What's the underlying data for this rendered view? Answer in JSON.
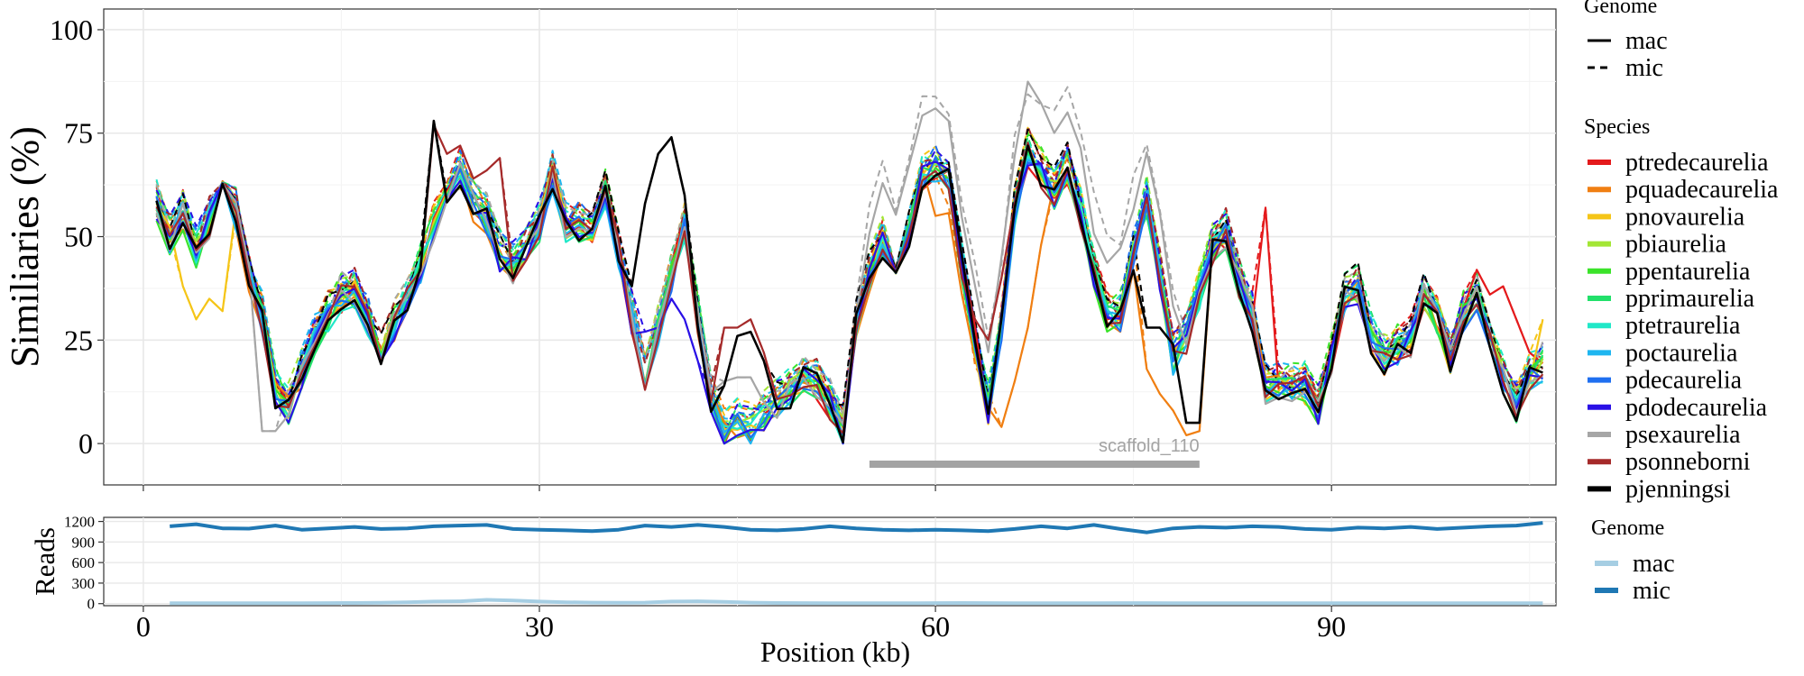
{
  "chart_data": [
    {
      "type": "line",
      "ylabel": "Similiaries (%)",
      "xlabel": "",
      "xlim": [
        -3,
        107
      ],
      "ylim": [
        -10,
        105
      ],
      "x_ticks": [
        0,
        30,
        60,
        90
      ],
      "y_ticks": [
        0,
        25,
        50,
        75,
        100
      ],
      "y_tick_labels": [
        "0",
        "25",
        "50",
        "75",
        "100"
      ],
      "grid": true,
      "legend": {
        "placement": "right",
        "genome_title": "Genome",
        "genome_entries": [
          {
            "label": "mac",
            "dash": "solid"
          },
          {
            "label": "mic",
            "dash": "dashed"
          }
        ],
        "species_title": "Species"
      },
      "annotation": {
        "text": "scaffold_110",
        "x_start": 55,
        "x_end": 80,
        "y": -5,
        "color": "#a3a3a3"
      },
      "x": [
        1,
        2,
        3,
        4,
        5,
        6,
        7,
        8,
        9,
        10,
        11,
        12,
        13,
        14,
        15,
        16,
        17,
        18,
        19,
        20,
        21,
        22,
        23,
        24,
        25,
        26,
        27,
        28,
        29,
        30,
        31,
        32,
        33,
        34,
        35,
        36,
        37,
        38,
        39,
        40,
        41,
        42,
        43,
        44,
        45,
        46,
        47,
        48,
        49,
        50,
        51,
        52,
        53,
        54,
        55,
        56,
        57,
        58,
        59,
        60,
        61,
        62,
        63,
        64,
        65,
        66,
        67,
        68,
        69,
        70,
        71,
        72,
        73,
        74,
        75,
        76,
        77,
        78,
        79,
        80,
        81,
        82,
        83,
        84,
        85,
        86,
        87,
        88,
        89,
        90,
        91,
        92,
        93,
        94,
        95,
        96,
        97,
        98,
        99,
        100,
        101,
        102,
        103,
        104,
        105,
        106
      ],
      "base_profile": [
        57,
        49,
        55,
        46,
        53,
        60,
        55,
        40,
        30,
        12,
        8,
        16,
        25,
        30,
        35,
        36,
        29,
        20,
        28,
        34,
        42,
        52,
        60,
        65,
        57,
        54,
        45,
        42,
        47,
        52,
        64,
        52,
        52,
        52,
        60,
        46,
        30,
        15,
        27,
        40,
        52,
        30,
        10,
        2,
        4,
        3,
        6,
        9,
        12,
        15,
        14,
        9,
        3,
        28,
        40,
        48,
        38,
        50,
        64,
        66,
        63,
        42,
        25,
        8,
        28,
        55,
        70,
        65,
        60,
        66,
        55,
        40,
        30,
        30,
        45,
        58,
        40,
        20,
        25,
        36,
        47,
        50,
        38,
        30,
        13,
        13,
        13,
        13,
        8,
        20,
        35,
        37,
        25,
        20,
        22,
        24,
        35,
        30,
        20,
        30,
        35,
        25,
        15,
        8,
        15,
        18
      ],
      "series": [
        {
          "name": "ptredecaurelia",
          "color": "#e41a1c",
          "genome": "mac"
        },
        {
          "name": "pquadecaurelia",
          "color": "#f07f12",
          "genome": "mac"
        },
        {
          "name": "pnovaurelia",
          "color": "#f5c518",
          "genome": "mac"
        },
        {
          "name": "pbiaurelia",
          "color": "#a3e635",
          "genome": "mac"
        },
        {
          "name": "ppentaurelia",
          "color": "#3be32a",
          "genome": "mac"
        },
        {
          "name": "pprimaurelia",
          "color": "#22e06a",
          "genome": "mac"
        },
        {
          "name": "ptetraurelia",
          "color": "#20e8c8",
          "genome": "mac"
        },
        {
          "name": "poctaurelia",
          "color": "#1fb6f0",
          "genome": "mac"
        },
        {
          "name": "pdecaurelia",
          "color": "#1f6ff0",
          "genome": "mac"
        },
        {
          "name": "pdodecaurelia",
          "color": "#2a10e6",
          "genome": "mac"
        },
        {
          "name": "psexaurelia",
          "color": "#a6a6a6",
          "genome": "mac"
        },
        {
          "name": "psonneborni",
          "color": "#a52a2a",
          "genome": "mac"
        },
        {
          "name": "pjenningsi",
          "color": "#000000",
          "genome": "mac"
        }
      ]
    },
    {
      "type": "line",
      "ylabel": "Reads",
      "xlabel": "Position (kb)",
      "xlim": [
        -3,
        107
      ],
      "ylim": [
        -30,
        1260
      ],
      "x_ticks": [
        0,
        30,
        60,
        90
      ],
      "x_tick_labels": [
        "0",
        "30",
        "60",
        "90"
      ],
      "y_ticks": [
        0,
        300,
        600,
        900,
        1200
      ],
      "y_tick_labels": [
        "0",
        "300",
        "600",
        "900",
        "1200"
      ],
      "grid": true,
      "legend": {
        "placement": "right",
        "title": "Genome"
      },
      "x": [
        2,
        4,
        6,
        8,
        10,
        12,
        14,
        16,
        18,
        20,
        22,
        24,
        26,
        28,
        30,
        32,
        34,
        36,
        38,
        40,
        42,
        44,
        46,
        48,
        50,
        52,
        54,
        56,
        58,
        60,
        62,
        64,
        66,
        68,
        70,
        72,
        74,
        76,
        78,
        80,
        82,
        84,
        86,
        88,
        90,
        92,
        94,
        96,
        98,
        100,
        102,
        104,
        106
      ],
      "series": [
        {
          "name": "mac",
          "color": "#a6cee3",
          "values": [
            5,
            5,
            5,
            5,
            5,
            6,
            8,
            10,
            14,
            20,
            30,
            35,
            55,
            45,
            30,
            20,
            15,
            12,
            15,
            30,
            35,
            25,
            15,
            10,
            8,
            6,
            5,
            5,
            6,
            8,
            10,
            8,
            6,
            5,
            5,
            6,
            8,
            8,
            6,
            5,
            5,
            5,
            5,
            5,
            5,
            5,
            5,
            5,
            5,
            5,
            5,
            5,
            5
          ]
        },
        {
          "name": "mic",
          "color": "#1f78b4",
          "values": [
            1130,
            1160,
            1100,
            1095,
            1140,
            1080,
            1100,
            1120,
            1090,
            1100,
            1130,
            1140,
            1150,
            1090,
            1080,
            1070,
            1060,
            1080,
            1140,
            1120,
            1150,
            1120,
            1080,
            1070,
            1090,
            1130,
            1100,
            1080,
            1070,
            1080,
            1070,
            1060,
            1090,
            1130,
            1100,
            1150,
            1090,
            1040,
            1100,
            1120,
            1110,
            1130,
            1120,
            1090,
            1080,
            1110,
            1100,
            1120,
            1090,
            1110,
            1130,
            1140,
            1180
          ]
        }
      ]
    }
  ]
}
